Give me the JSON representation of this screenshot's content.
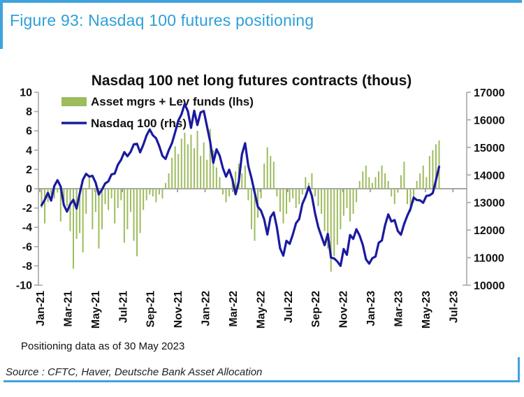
{
  "figure": {
    "title": "Figure 93: Nasdaq 100 futures positioning",
    "footnote": "Positioning data as of 30 May 2023",
    "source": "Source : CFTC, Haver, Deutsche Bank Asset Allocation"
  },
  "colors": {
    "accent_blue": "#2E9FD9",
    "border_blue": "#3FA3DC",
    "bar_green": "#9DBC5D",
    "line_navy": "#1A1AA0",
    "zero_line_gray": "#8C8C8C",
    "spine_gray": "#A6A6A6",
    "text_black": "#111111"
  },
  "chart_data": {
    "type": "bar",
    "title": "Nasdaq 100 net long futures contracts  (thous)",
    "legend_position": "top-left",
    "grid": false,
    "x_weekly": {
      "start": "2021-01-05",
      "step_days": 7,
      "count": 126
    },
    "x_ticks": [
      "Jan-21",
      "Mar-21",
      "May-21",
      "Jul-21",
      "Sep-21",
      "Nov-21",
      "Jan-22",
      "Mar-22",
      "May-22",
      "Jul-22",
      "Sep-22",
      "Nov-22",
      "Jan-23",
      "Mar-23",
      "May-23",
      "Jul-23"
    ],
    "left_axis": {
      "min": -10,
      "max": 10,
      "ticks": [
        10,
        8,
        6,
        4,
        2,
        0,
        -2,
        -4,
        -6,
        -8,
        -10
      ]
    },
    "right_axis": {
      "min": 10000,
      "max": 17000,
      "ticks": [
        17000,
        16000,
        15000,
        14000,
        13000,
        12000,
        11000,
        10000
      ]
    },
    "series": [
      {
        "name": "Asset mgrs + Lev funds (lhs)",
        "type": "bar",
        "axis": "left",
        "color": "#9DBC5D",
        "values": [
          -2.0,
          -3.6,
          -1.4,
          -0.6,
          -1.0,
          -0.4,
          -3.4,
          -1.2,
          -1.8,
          -4.4,
          -8.3,
          -5.2,
          -4.6,
          -6.6,
          -2.6,
          1.2,
          -4.2,
          -2.4,
          -6.2,
          -4.2,
          -1.6,
          -2.2,
          -1.0,
          -3.6,
          -2.0,
          -1.2,
          -5.6,
          -4.2,
          -2.4,
          -5.4,
          -7.0,
          -4.6,
          -2.2,
          -1.2,
          -0.6,
          -0.8,
          -1.4,
          -0.6,
          -1.0,
          0.6,
          1.6,
          3.2,
          4.4,
          3.6,
          5.2,
          5.8,
          4.6,
          5.6,
          4.2,
          6.0,
          3.4,
          4.8,
          3.0,
          6.2,
          4.0,
          2.2,
          1.2,
          -0.6,
          -1.4,
          -0.8,
          0.8,
          1.8,
          2.6,
          1.6,
          2.4,
          -1.2,
          -4.2,
          -5.4,
          -3.0,
          -1.0,
          2.6,
          4.3,
          3.4,
          2.8,
          -0.8,
          -2.4,
          -3.6,
          -2.6,
          -1.4,
          -1.0,
          -2.0,
          -1.6,
          -0.6,
          1.2,
          0.6,
          1.6,
          -0.8,
          -1.8,
          -2.6,
          -4.4,
          -6.2,
          -8.6,
          -7.0,
          -5.8,
          -4.2,
          -2.8,
          -2.0,
          -3.4,
          -2.6,
          -1.4,
          0.8,
          1.8,
          2.4,
          1.2,
          0.6,
          1.2,
          1.8,
          2.4,
          1.6,
          0.8,
          -0.8,
          -1.6,
          -0.4,
          1.4,
          2.8,
          -1.6,
          -2.4,
          -1.4,
          0.8,
          1.6,
          2.4,
          1.2,
          3.4,
          4.0,
          4.6,
          5.0
        ]
      },
      {
        "name": "Nasdaq 100 (rhs)",
        "type": "line",
        "axis": "right",
        "color": "#1A1AA0",
        "values": [
          12900,
          13100,
          13350,
          13070,
          13600,
          13810,
          13580,
          12910,
          12670,
          12940,
          13100,
          12780,
          13330,
          13830,
          14040,
          13940,
          13970,
          13720,
          13290,
          13470,
          13690,
          13770,
          14020,
          14050,
          14370,
          14550,
          14830,
          14680,
          14840,
          15110,
          15130,
          14820,
          15100,
          15430,
          15650,
          15440,
          15330,
          15050,
          14690,
          14580,
          14900,
          15150,
          15550,
          15970,
          16200,
          16575,
          16310,
          15710,
          16330,
          15810,
          16270,
          16320,
          15770,
          15210,
          14440,
          14930,
          14700,
          14250,
          13940,
          14190,
          13840,
          13300,
          13750,
          14750,
          15150,
          14330,
          13890,
          13360,
          12850,
          12700,
          12390,
          11840,
          12470,
          12640,
          12100,
          11340,
          11070,
          11610,
          11500,
          11840,
          12250,
          12400,
          12950,
          13210,
          13570,
          13240,
          12600,
          12110,
          11770,
          11450,
          11860,
          11000,
          10970,
          10860,
          10700,
          11310,
          11100,
          11820,
          11680,
          12030,
          11800,
          11460,
          10940,
          10780,
          10980,
          11040,
          11540,
          11620,
          12170,
          12570,
          12310,
          12360,
          11970,
          11830,
          12220,
          12520,
          12770,
          13180,
          13090,
          13080,
          12990,
          13240,
          13260,
          13340,
          13800,
          14300
        ]
      }
    ]
  }
}
